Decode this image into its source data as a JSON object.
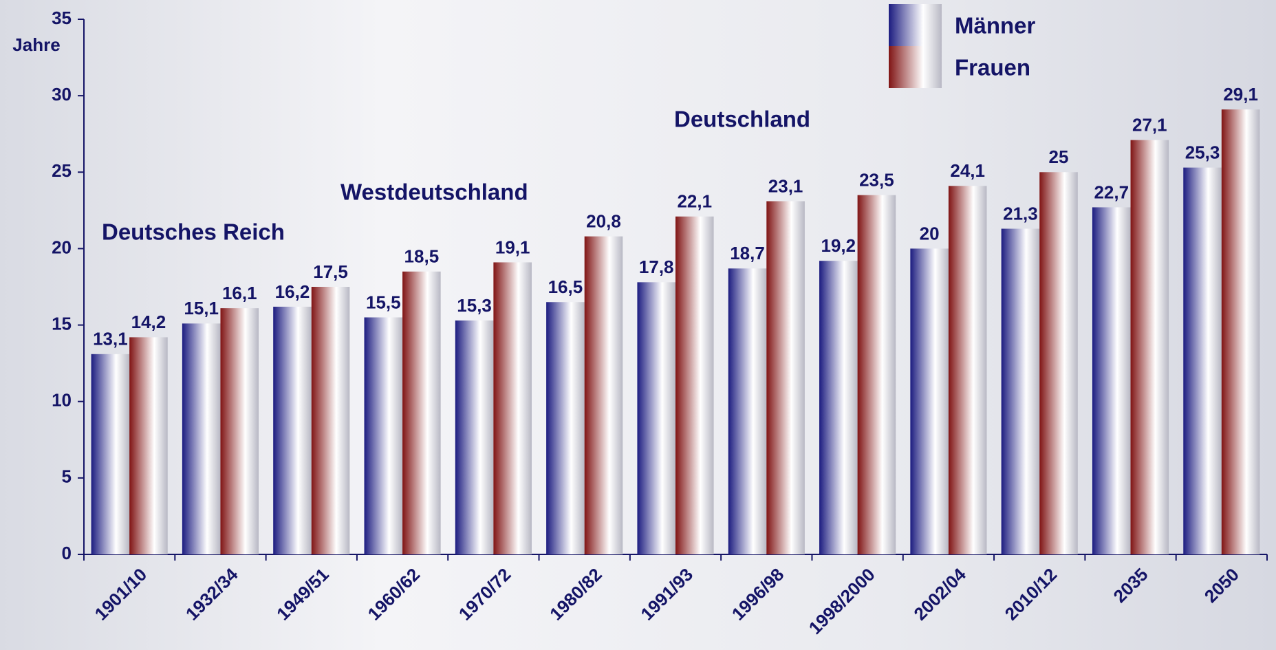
{
  "chart_data": {
    "type": "bar",
    "y_label": "Jahre",
    "annotations": [
      "Deutsches Reich",
      "Westdeutschland",
      "Deutschland"
    ],
    "categories": [
      "1901/10",
      "1932/34",
      "1949/51",
      "1960/62",
      "1970/72",
      "1980/82",
      "1991/93",
      "1996/98",
      "1998/2000",
      "2002/04",
      "2010/12",
      "2035",
      "2050"
    ],
    "series": [
      {
        "name": "Männer",
        "color": "#1c1c80",
        "values": [
          13.1,
          15.1,
          16.2,
          15.5,
          15.3,
          16.5,
          17.8,
          18.7,
          19.2,
          20,
          21.3,
          22.7,
          25.3
        ],
        "value_labels": [
          "13,1",
          "15,1",
          "16,2",
          "15,5",
          "15,3",
          "16,5",
          "17,8",
          "18,7",
          "19,2",
          "20",
          "21,3",
          "22,7",
          "25,3"
        ]
      },
      {
        "name": "Frauen",
        "color": "#801414",
        "values": [
          14.2,
          16.1,
          17.5,
          18.5,
          19.1,
          20.8,
          22.1,
          23.1,
          23.5,
          24.1,
          25,
          27.1,
          29.1
        ],
        "value_labels": [
          "14,2",
          "16,1",
          "17,5",
          "18,5",
          "19,1",
          "20,8",
          "22,1",
          "23,1",
          "23,5",
          "24,1",
          "25",
          "27,1",
          "29,1"
        ]
      }
    ],
    "ylim": [
      0,
      35
    ],
    "yticks": [
      0,
      5,
      10,
      15,
      20,
      25,
      30,
      35
    ],
    "grid": false,
    "legend": "top-right"
  }
}
